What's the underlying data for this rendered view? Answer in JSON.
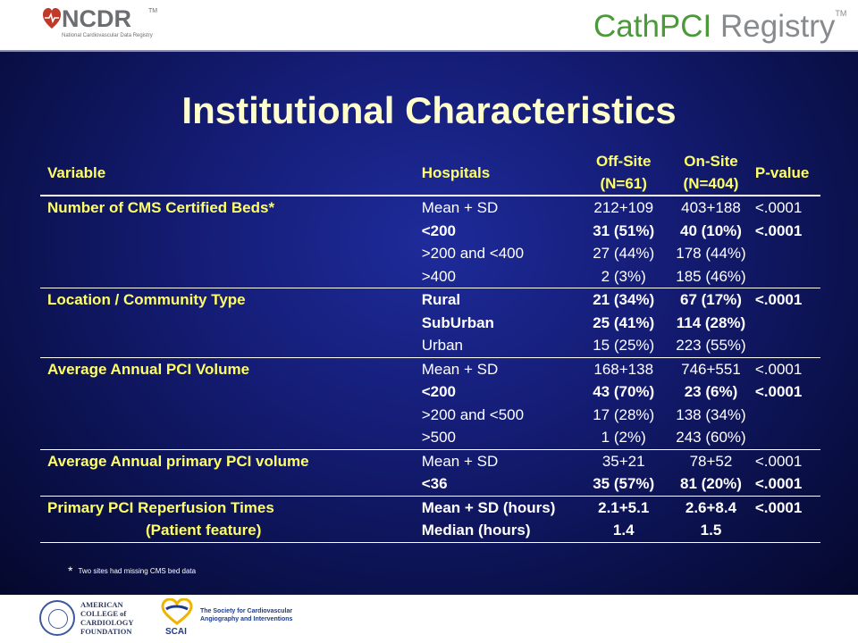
{
  "header": {
    "ncdr_logo": "NCDR",
    "ncdr_tm": "TM",
    "ncdr_subtitle": "National Cardiovascular Data Registry",
    "registry_part1": "CathPCI",
    "registry_part2": " Registry",
    "registry_tm": "TM"
  },
  "slide": {
    "title": "Institutional Characteristics",
    "columns": {
      "variable": "Variable",
      "hospitals": "Hospitals",
      "offsite_line1": "Off-Site",
      "offsite_line2": "(N=61)",
      "onsite_line1": "On-Site",
      "onsite_line2": "(N=404)",
      "pvalue": "P-value"
    },
    "rows": [
      {
        "variable": "Number of CMS Certified Beds*",
        "hospitals": "Mean + SD",
        "offsite": "212+109",
        "onsite": "403+188",
        "pvalue": "<.0001"
      },
      {
        "variable": "",
        "hospitals": "<200",
        "offsite": "31 (51%)",
        "onsite": "40 (10%)",
        "pvalue": "<.0001"
      },
      {
        "variable": "",
        "hospitals": ">200 and <400",
        "offsite": "27 (44%)",
        "onsite": "178 (44%)",
        "pvalue": ""
      },
      {
        "variable": "",
        "hospitals": ">400",
        "offsite": "2 (3%)",
        "onsite": "185 (46%)",
        "pvalue": ""
      },
      {
        "variable": "Location / Community Type",
        "hospitals": "Rural",
        "offsite": "21 (34%)",
        "onsite": "67 (17%)",
        "pvalue": "<.0001"
      },
      {
        "variable": "",
        "hospitals": "SubUrban",
        "offsite": "25 (41%)",
        "onsite": "114 (28%)",
        "pvalue": ""
      },
      {
        "variable": "",
        "hospitals": "Urban",
        "offsite": "15 (25%)",
        "onsite": "223 (55%)",
        "pvalue": ""
      },
      {
        "variable": "Average Annual PCI Volume",
        "hospitals": "Mean + SD",
        "offsite": "168+138",
        "onsite": "746+551",
        "pvalue": "<.0001"
      },
      {
        "variable": "",
        "hospitals": "<200",
        "offsite": "43 (70%)",
        "onsite": "23 (6%)",
        "pvalue": "<.0001"
      },
      {
        "variable": "",
        "hospitals": ">200 and <500",
        "offsite": "17 (28%)",
        "onsite": "138 (34%)",
        "pvalue": ""
      },
      {
        "variable": "",
        "hospitals": ">500",
        "offsite": "1 (2%)",
        "onsite": "243 (60%)",
        "pvalue": ""
      },
      {
        "variable": "Average Annual primary PCI volume",
        "hospitals": "Mean + SD",
        "offsite": "35+21",
        "onsite": "78+52",
        "pvalue": "<.0001"
      },
      {
        "variable": "",
        "hospitals": "<36",
        "offsite": "35 (57%)",
        "onsite": "81 (20%)",
        "pvalue": "<.0001"
      },
      {
        "variable": "Primary PCI Reperfusion Times",
        "hospitals": "Mean + SD (hours)",
        "offsite": "2.1+5.1",
        "onsite": "2.6+8.4",
        "pvalue": "<.0001"
      },
      {
        "variable": "(Patient feature)",
        "hospitals": "Median (hours)",
        "offsite": "1.4",
        "onsite": "1.5",
        "pvalue": ""
      }
    ],
    "footnote_star": "*",
    "footnote": "Two sites had missing CMS bed data"
  },
  "footer": {
    "acc_line1": "AMERICAN",
    "acc_line2": "COLLEGE of",
    "acc_line3": "CARDIOLOGY",
    "acc_line4": "FOUNDATION",
    "scai_word": "SCAI",
    "scai_line1": "The Society for Cardiovascular",
    "scai_line2": "Angiography and Interventions"
  }
}
